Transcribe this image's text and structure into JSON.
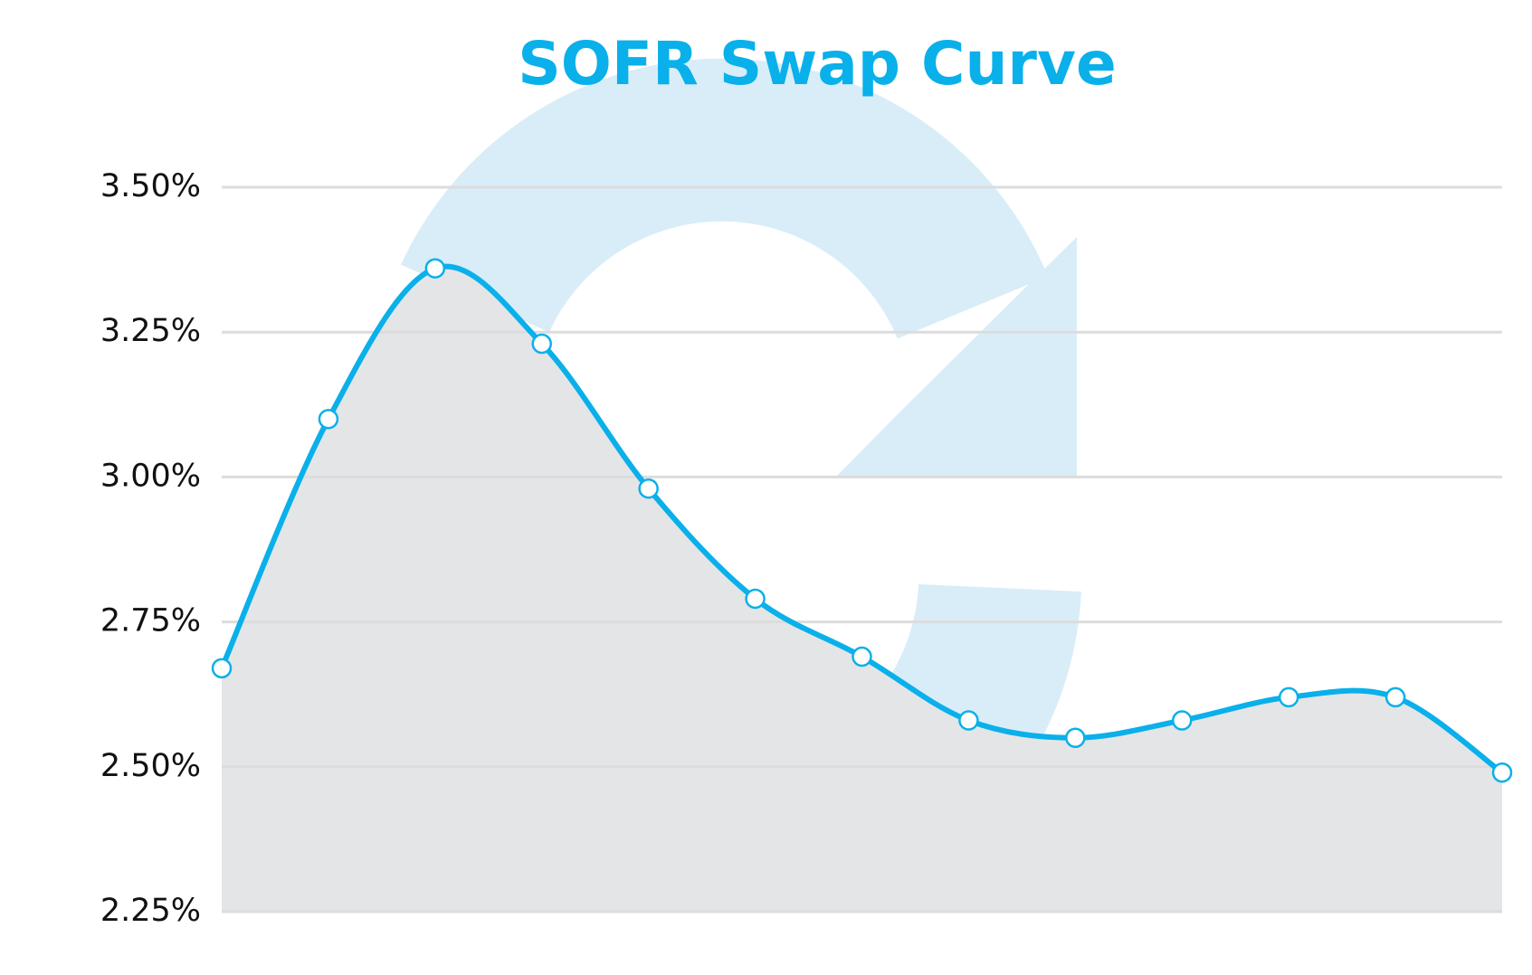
{
  "chart_data": {
    "type": "line",
    "title": "SOFR Swap Curve",
    "categories": [
      null,
      null,
      null,
      null,
      null,
      null,
      null,
      null,
      null,
      null,
      null,
      null,
      null
    ],
    "series": [
      {
        "color": "#0ab0ea",
        "values": [
          2.67,
          3.1,
          3.36,
          3.23,
          2.98,
          2.79,
          2.69,
          2.58,
          2.55,
          2.58,
          2.62,
          2.62,
          2.49
        ]
      }
    ],
    "ylim": [
      2.25,
      3.5
    ],
    "yticks": [
      {
        "value": 2.25,
        "label": "2.25%"
      },
      {
        "value": 2.5,
        "label": "2.50%"
      },
      {
        "value": 2.75,
        "label": "2.75%"
      },
      {
        "value": 3.0,
        "label": "3.00%"
      },
      {
        "value": 3.25,
        "label": "3.25%"
      },
      {
        "value": 3.5,
        "label": "3.50%"
      }
    ],
    "grid": true,
    "area_color": "#e4e5e7"
  }
}
